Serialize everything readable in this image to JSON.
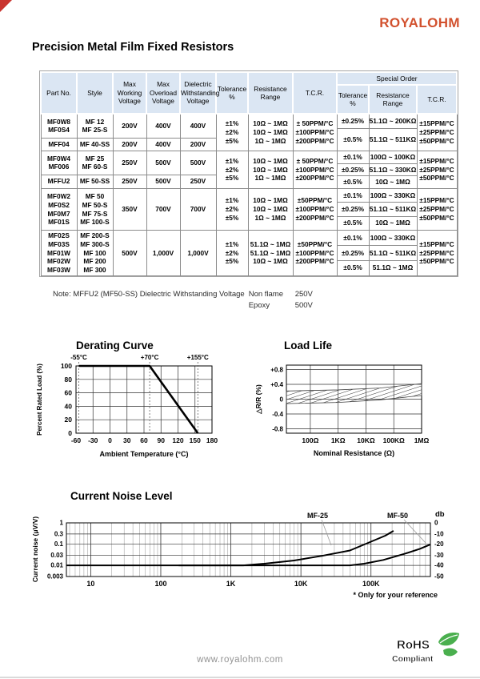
{
  "page": {
    "logo": "ROYALOHM",
    "title": "Precision Metal Film Fixed Resistors",
    "footer_url": "www.royalohm.com",
    "rohs": {
      "line1": "RoHS",
      "line2": "Compliant"
    },
    "note": {
      "label": "Note: MFFU2 (MF50-SS) Dielectric Withstanding Voltage",
      "rows": [
        {
          "k": "Non flame",
          "v": "250V"
        },
        {
          "k": "Epoxy",
          "v": "500V"
        }
      ]
    }
  },
  "table": {
    "header": {
      "part_no": "Part No.",
      "style": "Style",
      "max_working": "Max\nWorking\nVoltage",
      "max_overload": "Max\nOverload\nVoltage",
      "dielectric": "Dielectric\nWithstanding\nVoltage",
      "tolerance": "Tolerance\n%",
      "resistance_range": "Resistance\nRange",
      "tcr": "T.C.R.",
      "special_order": "Special Order",
      "so_tolerance": "Tolerance\n%",
      "so_resistance_range": "Resistance\nRange",
      "so_tcr": "T.C.R."
    },
    "groups": [
      {
        "sub": [
          {
            "part": "MF0W8\nMF0S4",
            "style": "MF 12\nMF 25-S",
            "vw": "200V",
            "vo": "400V",
            "vd": "400V"
          },
          {
            "part": "MFF04",
            "style": "MF 40-SS",
            "vw": "200V",
            "vo": "400V",
            "vd": "200V"
          }
        ],
        "tol": "±1%\n±2%\n±5%",
        "rr": "10Ω ~ 1MΩ\n10Ω ~ 1MΩ\n1Ω ~ 1MΩ",
        "tcr": "± 50PPM/°C\n±100PPM/°C\n±200PPM/°C",
        "so": [
          {
            "tol": "±0.25%",
            "rr": "51.1Ω ~ 200KΩ"
          },
          {
            "tol": "±0.5%",
            "rr": "51.1Ω ~ 511KΩ"
          }
        ],
        "so_tcr": "±15PPM/°C\n±25PPM/°C\n±50PPM/°C"
      },
      {
        "sub": [
          {
            "part": "MF0W4\nMF006",
            "style": "MF 25\nMF 60-S",
            "vw": "250V",
            "vo": "500V",
            "vd": "500V"
          },
          {
            "part": "MFFU2",
            "style": "MF 50-SS",
            "vw": "250V",
            "vo": "500V",
            "vd": "250V"
          }
        ],
        "tol": "±1%\n±2%\n±5%",
        "rr": "10Ω ~ 1MΩ\n10Ω ~ 1MΩ\n1Ω ~ 1MΩ",
        "tcr": "± 50PPM/°C\n±100PPM/°C\n±200PPM/°C",
        "so": [
          {
            "tol": "±0.1%",
            "rr": "100Ω ~ 100KΩ"
          },
          {
            "tol": "±0.25%",
            "rr": "51.1Ω ~ 330KΩ"
          },
          {
            "tol": "±0.5%",
            "rr": "10Ω ~ 1MΩ"
          }
        ],
        "so_tcr": "±15PPM/°C\n±25PPM/°C\n±50PPM/°C"
      },
      {
        "sub": [
          {
            "part": "MF0W2\nMF0S2\nMF0M7\nMF01S",
            "style": "MF 50\nMF 50-S\nMF 75-S\nMF 100-S",
            "vw": "350V",
            "vo": "700V",
            "vd": "700V"
          }
        ],
        "tol": "±1%\n±2%\n±5%",
        "rr": "10Ω ~ 1MΩ\n10Ω ~ 1MΩ\n1Ω ~ 1MΩ",
        "tcr": "±50PPM/°C\n±100PPM/°C\n±200PPM/°C",
        "so": [
          {
            "tol": "±0.1%",
            "rr": "100Ω ~ 330KΩ"
          },
          {
            "tol": "±0.25%",
            "rr": "51.1Ω ~ 511KΩ"
          },
          {
            "tol": "±0.5%",
            "rr": "10Ω ~ 1MΩ"
          }
        ],
        "so_tcr": "±15PPM/°C\n±25PPM/°C\n±50PPM/°C"
      },
      {
        "sub": [
          {
            "part": "MF02S\nMF03S\nMF01W\nMF02W\nMF03W",
            "style": "MF 200-S\nMF 300-S\nMF 100\nMF 200\nMF 300",
            "vw": "500V",
            "vo": "1,000V",
            "vd": "1,000V"
          }
        ],
        "tol": "±1%\n±2%\n±5%",
        "rr": "51.1Ω ~ 1MΩ\n51.1Ω ~ 1MΩ\n10Ω ~ 1MΩ",
        "tcr": "±50PPM/°C\n±100PPM/°C\n±200PPM/°C",
        "so": [
          {
            "tol": "±0.1%",
            "rr": "100Ω ~ 330KΩ"
          },
          {
            "tol": "±0.25%",
            "rr": "51.1Ω ~ 511KΩ"
          },
          {
            "tol": "±0.5%",
            "rr": "51.1Ω ~ 1MΩ"
          }
        ],
        "so_tcr": "±15PPM/°C\n±25PPM/°C\n±50PPM/°C"
      }
    ]
  },
  "chart_data": [
    {
      "type": "line",
      "title": "Derating Curve",
      "xlabel": "Ambient Temperature (°C)",
      "ylabel": "Percent Rated Load (%)",
      "xlim": [
        -60,
        180
      ],
      "ylim": [
        0,
        100
      ],
      "xticks": [
        -60,
        -30,
        0,
        30,
        60,
        90,
        120,
        150,
        180
      ],
      "yticks": [
        100,
        80,
        60,
        40,
        20,
        0
      ],
      "grid": "on",
      "annotations": [
        {
          "label": "-55°C",
          "x": -55
        },
        {
          "label": "+70°C",
          "x": 70
        },
        {
          "label": "+155°C",
          "x": 155
        }
      ],
      "series": [
        {
          "name": "derating",
          "points": [
            [
              -55,
              100
            ],
            [
              70,
              100
            ],
            [
              155,
              0
            ]
          ]
        }
      ]
    },
    {
      "type": "area",
      "title": "Load Life",
      "xlabel": "Nominal Resistance (Ω)",
      "ylabel": "△R/R (%)",
      "xticks": [
        "100Ω",
        "1KΩ",
        "10KΩ",
        "100KΩ",
        "1MΩ"
      ],
      "xtick_logs": [
        2,
        3,
        4,
        5,
        6
      ],
      "xlim_log": [
        1.14,
        6
      ],
      "yticks": [
        "+0.8",
        "+0.4",
        "0",
        "-0.4",
        "-0.8"
      ],
      "ytick_vals": [
        0.8,
        0.4,
        0,
        -0.4,
        -0.8
      ],
      "grid": "on",
      "band": {
        "upper": [
          [
            1.14,
            0.22
          ],
          [
            3,
            0.25
          ],
          [
            4.5,
            0.3
          ],
          [
            6,
            0.42
          ]
        ],
        "lower": [
          [
            1.14,
            -0.12
          ],
          [
            3,
            -0.09
          ],
          [
            4.5,
            -0.02
          ],
          [
            6,
            0.1
          ]
        ]
      }
    },
    {
      "type": "line",
      "title": "Current Noise Level",
      "ylabel": "Current noise (μV/V)",
      "y2label": "db",
      "footnote": "* Only for your reference",
      "xticks": [
        "10",
        "100",
        "1K",
        "10K",
        "100K"
      ],
      "xtick_logs": [
        1,
        2,
        3,
        4,
        5
      ],
      "xlim_log": [
        0.653,
        5.848
      ],
      "yticks": [
        "1",
        "0.3",
        "0.1",
        "0.03",
        "0.01",
        "0.003"
      ],
      "ytick_vals": [
        1,
        0.3,
        0.1,
        0.03,
        0.01,
        0.003
      ],
      "y2ticks": [
        "0",
        "-10",
        "-20",
        "-30",
        "-40",
        "-50"
      ],
      "grid": "log",
      "series": [
        {
          "name": "MF-25",
          "points": [
            [
              4.5,
              0.01
            ],
            [
              1500,
              0.01
            ],
            [
              3000,
              0.012
            ],
            [
              8000,
              0.017
            ],
            [
              20000,
              0.028
            ],
            [
              50000,
              0.05
            ],
            [
              100000,
              0.13
            ],
            [
              160000,
              0.25
            ],
            [
              210000,
              0.42
            ]
          ]
        },
        {
          "name": "MF-50",
          "points": [
            [
              180,
              0.01
            ],
            [
              50000,
              0.01
            ],
            [
              80000,
              0.012
            ],
            [
              150000,
              0.018
            ],
            [
              300000,
              0.035
            ],
            [
              500000,
              0.06
            ],
            [
              700000,
              0.095
            ]
          ]
        }
      ]
    }
  ]
}
